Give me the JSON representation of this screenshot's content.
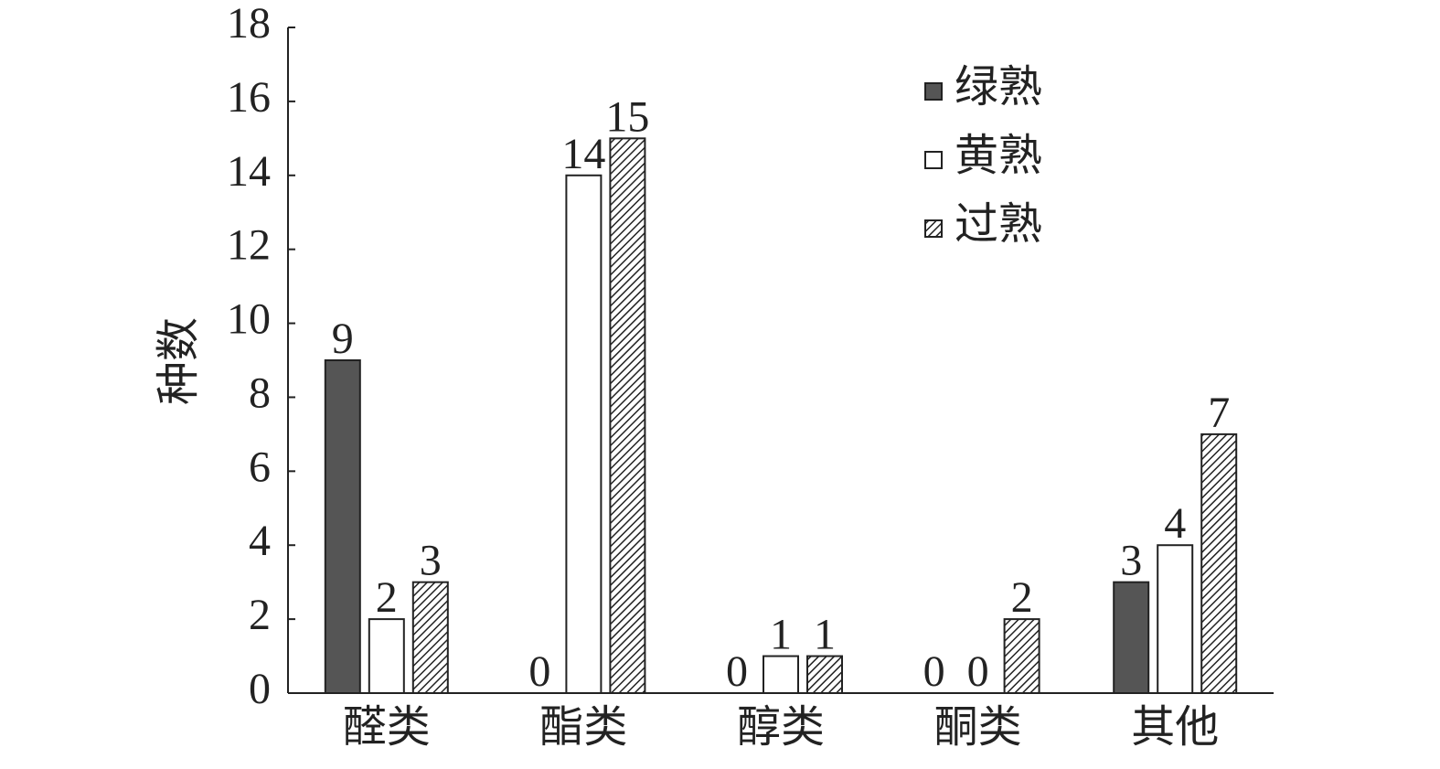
{
  "chart_data": {
    "type": "bar",
    "y_label": "种数",
    "categories": [
      "醛类",
      "酯类",
      "醇类",
      "酮类",
      "其他"
    ],
    "series": [
      {
        "name": "绿熟",
        "color": "#555555",
        "values": [
          9,
          0,
          0,
          0,
          3
        ]
      },
      {
        "name": "黄熟",
        "color": "#ffffff",
        "values": [
          2,
          14,
          1,
          0,
          4
        ]
      },
      {
        "name": "过熟",
        "color": "#ffffff",
        "pattern": "diagonal",
        "values": [
          3,
          15,
          1,
          2,
          7
        ]
      }
    ],
    "ylim": [
      0,
      18
    ],
    "yticks": [
      0,
      2,
      4,
      6,
      8,
      10,
      12,
      14,
      16,
      18
    ],
    "grid": false,
    "legend": "top-right"
  }
}
